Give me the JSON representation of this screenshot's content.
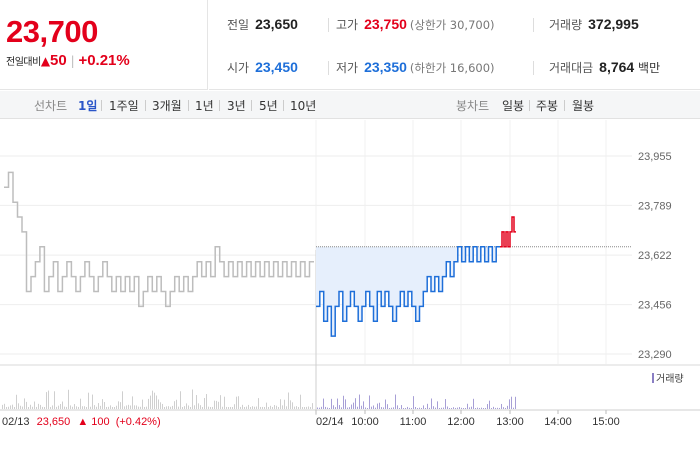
{
  "price": {
    "current": "23,700",
    "change_label": "전일대비",
    "change_arrow": "▲",
    "change_value": "50",
    "change_pct": "+0.21%"
  },
  "stats": {
    "prev_close": {
      "label": "전일",
      "value": "23,650"
    },
    "high": {
      "label": "고가",
      "value": "23,750",
      "sub": "(상한가 30,700)"
    },
    "volume": {
      "label": "거래량",
      "value": "372,995"
    },
    "open": {
      "label": "시가",
      "value": "23,450"
    },
    "low": {
      "label": "저가",
      "value": "23,350",
      "sub": "(하한가 16,600)"
    },
    "amount": {
      "label": "거래대금",
      "value": "8,764",
      "unit": "백만"
    }
  },
  "line_tabs": {
    "label": "선차트",
    "items": [
      "1일",
      "1주일",
      "3개월",
      "1년",
      "3년",
      "5년",
      "10년"
    ],
    "active": "1일"
  },
  "candle_tabs": {
    "label": "봉차트",
    "items": [
      "일봉",
      "주봉",
      "월봉"
    ]
  },
  "volume_legend": "거래량",
  "prev_day": {
    "date": "02/13",
    "price": "23,650",
    "arrow": "▲",
    "change": "100",
    "pct": "(+0.42%)"
  },
  "colors": {
    "up": "#e3001b",
    "down": "#1e6fd9",
    "prev_line": "#bdbdbd"
  },
  "chart_data": {
    "type": "line",
    "y_ticks": [
      "23,955",
      "23,789",
      "23,622",
      "23,456",
      "23,290"
    ],
    "ylim": [
      23290,
      23955
    ],
    "reference_price": 23650,
    "x_ticks": [
      "02/14",
      "10:00",
      "11:00",
      "12:00",
      "13:00",
      "14:00",
      "15:00"
    ],
    "series": [
      {
        "values": [
          23850,
          23900,
          23800,
          23750,
          23700,
          23500,
          23550,
          23600,
          23650,
          23500,
          23550,
          23600,
          23500,
          23550,
          23600,
          23550,
          23500,
          23550,
          23600,
          23550,
          23500,
          23550,
          23600,
          23550,
          23500,
          23550,
          23500,
          23550,
          23500,
          23550,
          23450,
          23500,
          23550,
          23500,
          23550,
          23500,
          23450,
          23500,
          23550,
          23500,
          23550,
          23500,
          23550,
          23600,
          23550,
          23600,
          23550,
          23650,
          23600,
          23550,
          23600,
          23550,
          23600,
          23550,
          23600,
          23550,
          23600,
          23550,
          23600,
          23550,
          23600,
          23550,
          23600,
          23550,
          23600,
          23550,
          23600,
          23550,
          23600
        ]
      },
      {
        "values": [
          23450,
          23500,
          23400,
          23450,
          23350,
          23450,
          23500,
          23400,
          23450,
          23500,
          23450,
          23400,
          23450,
          23500,
          23450,
          23400,
          23500,
          23450,
          23500,
          23450,
          23400,
          23450,
          23500,
          23450,
          23500,
          23450,
          23400,
          23450,
          23500,
          23550,
          23500,
          23550,
          23500,
          23550,
          23600,
          23550,
          23600,
          23650,
          23600,
          23650,
          23600,
          23650,
          23600,
          23650,
          23600,
          23650,
          23600,
          23650
        ]
      },
      {
        "values": [
          23650,
          23700,
          23650,
          23700,
          23650,
          23700,
          23750,
          23700
        ]
      }
    ]
  }
}
